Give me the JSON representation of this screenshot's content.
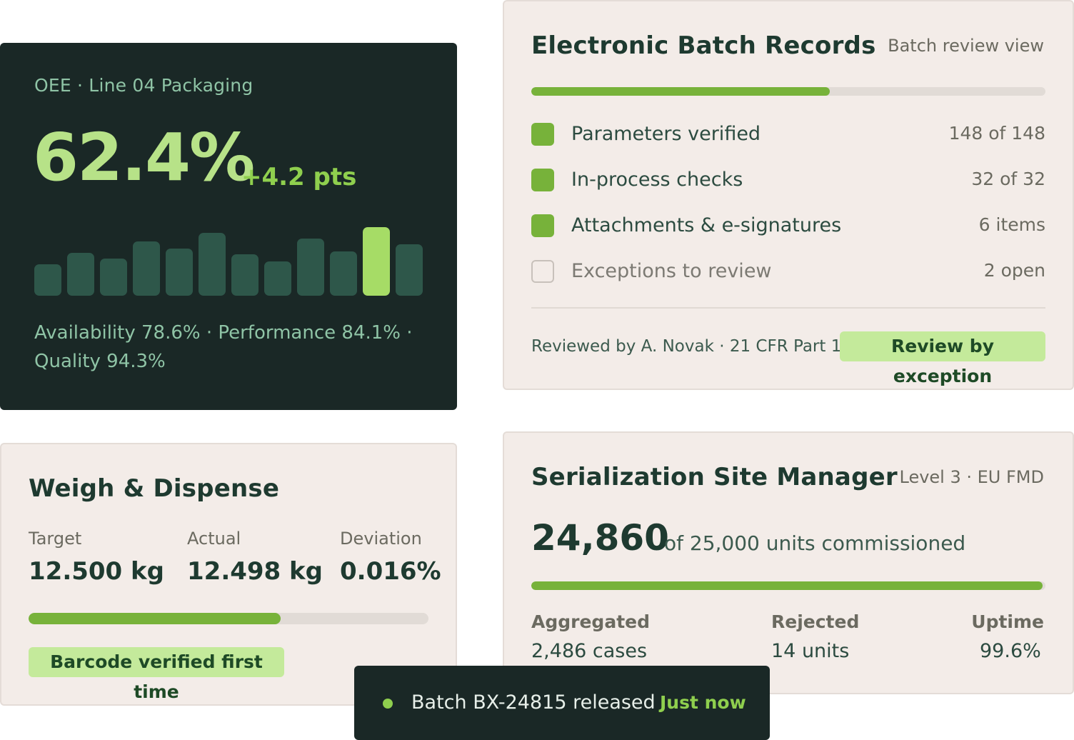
{
  "oee": {
    "label": "OEE · Line 04 Packaging",
    "value": "62.4%",
    "delta": "+4.2 pts",
    "bars": [
      {
        "level": 0.42,
        "highlight": false
      },
      {
        "level": 0.58,
        "highlight": false
      },
      {
        "level": 0.5,
        "highlight": false
      },
      {
        "level": 0.73,
        "highlight": false
      },
      {
        "level": 0.63,
        "highlight": false
      },
      {
        "level": 0.85,
        "highlight": false
      },
      {
        "level": 0.56,
        "highlight": false
      },
      {
        "level": 0.46,
        "highlight": false
      },
      {
        "level": 0.77,
        "highlight": false
      },
      {
        "level": 0.6,
        "highlight": false
      },
      {
        "level": 0.92,
        "highlight": true
      },
      {
        "level": 0.69,
        "highlight": false
      }
    ],
    "footer": "Availability 78.6% · Performance 84.1% · Quality 94.3%"
  },
  "ebr": {
    "title": "Electronic Batch Records",
    "subtitle": "Batch review view",
    "progress": 0.58,
    "checks": [
      {
        "label": "Parameters verified",
        "count": "148 of 148",
        "checked": true
      },
      {
        "label": "In-process checks",
        "count": "32 of 32",
        "checked": true
      },
      {
        "label": "Attachments & e-signatures",
        "count": "6 items",
        "checked": true
      },
      {
        "label": "Exceptions to review",
        "count": "2 open",
        "checked": false
      }
    ],
    "reviewed": "Reviewed by A. Novak · 21 CFR Part 11",
    "pill": "Review by exception"
  },
  "weigh": {
    "title": "Weigh & Dispense",
    "target_label": "Target",
    "target_value": "12.500 kg",
    "actual_label": "Actual",
    "actual_value": "12.498 kg",
    "deviation_label": "Deviation",
    "deviation_value": "0.016%",
    "progress": 0.63,
    "pill": "Barcode verified first time"
  },
  "serialization": {
    "title": "Serialization Site Manager",
    "subtitle": "Level 3 · EU FMD",
    "count": "24,860",
    "of_text": "of 25,000 units commissioned",
    "progress": 0.994,
    "stats": [
      {
        "label": "Aggregated",
        "value": "2,486 cases"
      },
      {
        "label": "Rejected",
        "value": "14 units"
      },
      {
        "label": "Uptime",
        "value": "99.6%"
      }
    ]
  },
  "toast": {
    "message": "Batch BX-24815 released",
    "time": "Just now"
  },
  "colors": {
    "dark_bg": "#1a2826",
    "accent_green": "#77b23a",
    "highlight_green": "#a6dc66",
    "card_bg": "#f3ece8"
  }
}
